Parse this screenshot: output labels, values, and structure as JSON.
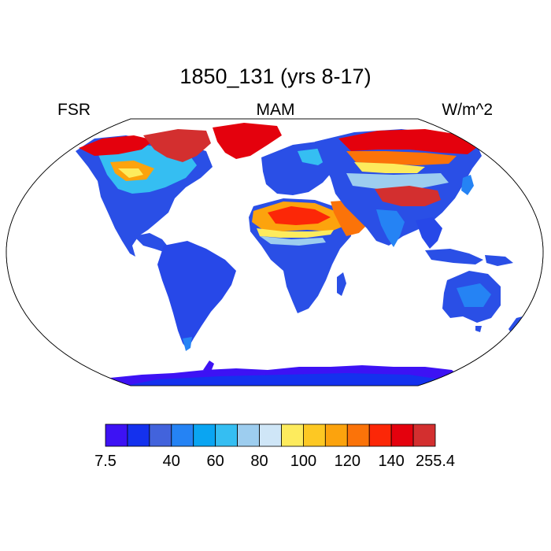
{
  "title": "1850_131 (yrs 8-17)",
  "variable": "FSR",
  "season": "MAM",
  "units": "W/m^2",
  "map": {
    "projection": "Robinson",
    "field": "FSR",
    "coastlines": true
  },
  "colorbar": {
    "colors": [
      "#3d12f4",
      "#1431ee",
      "#4263dc",
      "#2583f4",
      "#0aa5f2",
      "#35bef2",
      "#9dcdef",
      "#cfe6f7",
      "#fdeb5d",
      "#fdc823",
      "#fca30d",
      "#fb7309",
      "#fc2707",
      "#e4010d",
      "#d32f2f"
    ],
    "labels": [
      {
        "text": "7.5",
        "boundary": 0
      },
      {
        "text": "40",
        "boundary": 3
      },
      {
        "text": "60",
        "boundary": 5
      },
      {
        "text": "80",
        "boundary": 7
      },
      {
        "text": "100",
        "boundary": 9
      },
      {
        "text": "120",
        "boundary": 11
      },
      {
        "text": "140",
        "boundary": 13
      },
      {
        "text": "255.4",
        "boundary": 15
      }
    ]
  }
}
